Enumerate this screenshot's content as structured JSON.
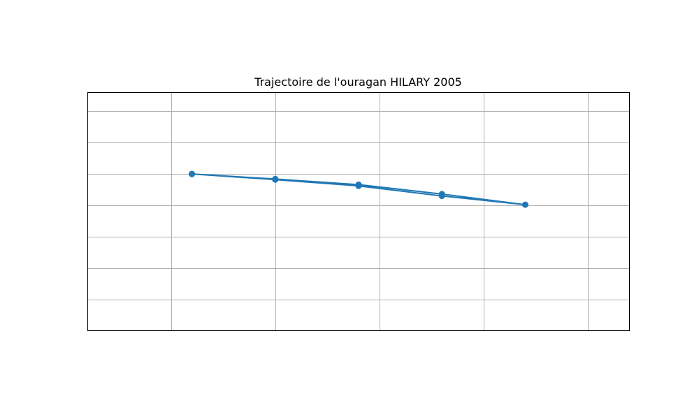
{
  "chart_data": {
    "type": "line",
    "title": "Trajectoire de l'ouragan HILARY 2005",
    "xlabel": "",
    "ylabel": "",
    "xlim": [
      -1.1,
      4.1
    ],
    "ylim": [
      -2.2,
      1.6
    ],
    "grid": true,
    "legend": "none",
    "x_gridlines": [
      -0.3,
      0.7,
      1.7,
      2.7,
      3.7
    ],
    "y_gridlines": [
      1.3,
      0.8,
      0.3,
      -0.2,
      -0.7,
      -1.2,
      -1.7
    ],
    "series": [
      {
        "color": "#1f77b4",
        "marker": "circle",
        "x": [
          -0.1,
          0.7,
          1.5,
          2.3,
          3.1,
          2.3,
          1.5,
          0.7,
          -0.1
        ],
        "y": [
          0.3,
          0.22,
          0.13,
          -0.02,
          -0.19,
          -0.05,
          0.11,
          0.21,
          0.3
        ]
      }
    ]
  }
}
